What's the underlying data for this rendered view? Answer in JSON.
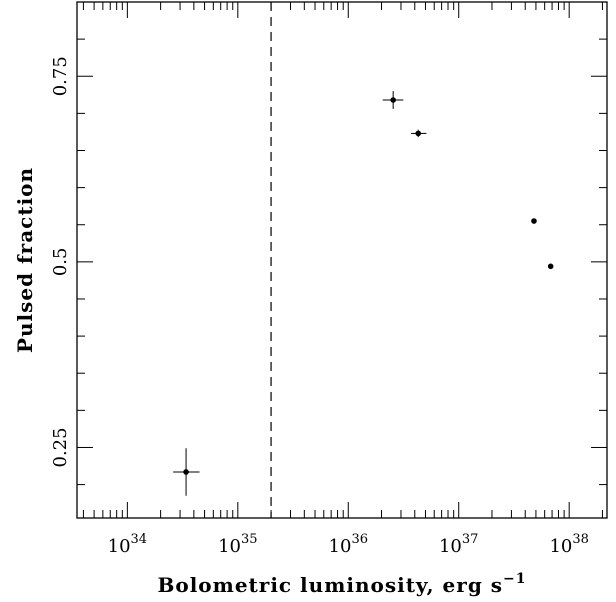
{
  "chart_data": {
    "type": "scatter",
    "xscale": "log",
    "xlim": [
      3.5e+33,
      2.2e+38
    ],
    "ylim": [
      0.155,
      0.85
    ],
    "xlabel": "Bolometric luminosity, erg s",
    "xlabel_superscript": "−1",
    "ylabel": "Pulsed fraction",
    "x_tick_labels": [
      {
        "base": "10",
        "exp": "34",
        "value": 1e+34
      },
      {
        "base": "10",
        "exp": "35",
        "value": 1e+35
      },
      {
        "base": "10",
        "exp": "36",
        "value": 1e+36
      },
      {
        "base": "10",
        "exp": "37",
        "value": 1e+37
      },
      {
        "base": "10",
        "exp": "38",
        "value": 1e+38
      }
    ],
    "y_ticks": [
      {
        "label": "0.25",
        "value": 0.25
      },
      {
        "label": "0.5",
        "value": 0.5
      },
      {
        "label": "0.75",
        "value": 0.75
      }
    ],
    "grid": false,
    "vline": {
      "x": 2e+35,
      "style": "dashed"
    },
    "points": [
      {
        "x": 3.4e+34,
        "y": 0.217,
        "xerr_lo": 8e+33,
        "xerr_hi": 1.1e+34,
        "yerr": 0.032
      },
      {
        "x": 2.55e+36,
        "y": 0.718,
        "xerr_lo": 5e+35,
        "xerr_hi": 6e+35,
        "yerr": 0.012
      },
      {
        "x": 4.3e+36,
        "y": 0.673,
        "xerr_lo": 6e+35,
        "xerr_hi": 8e+35,
        "yerr": 0.005
      },
      {
        "x": 4.8e+37,
        "y": 0.555,
        "xerr_lo": 0,
        "xerr_hi": 0,
        "yerr": 0
      },
      {
        "x": 6.8e+37,
        "y": 0.494,
        "xerr_lo": 0,
        "xerr_hi": 0,
        "yerr": 0
      }
    ]
  }
}
